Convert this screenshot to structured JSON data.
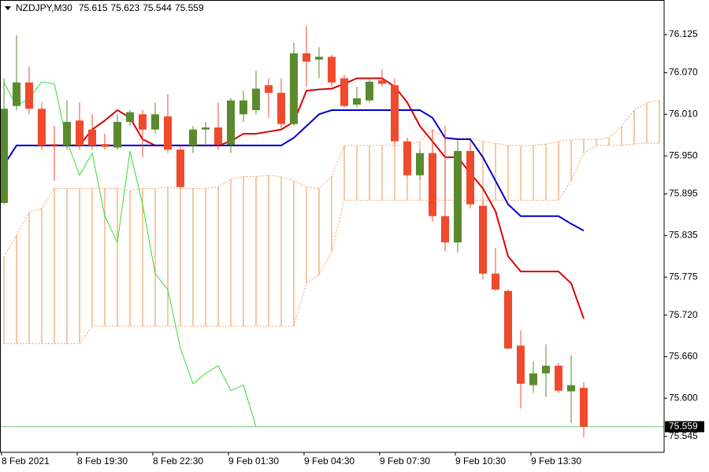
{
  "chart_data": {
    "type": "candlestick",
    "title": "NZDJPY,M30",
    "categories": [
      "8 Feb 2021",
      null,
      null,
      null,
      null,
      null,
      "8 Feb 19:30",
      null,
      null,
      null,
      null,
      null,
      "8 Feb 22:30",
      null,
      null,
      null,
      null,
      null,
      "9 Feb 01:30",
      null,
      null,
      null,
      null,
      null,
      "9 Feb 04:30",
      null,
      null,
      null,
      null,
      null,
      "9 Feb 07:30",
      null,
      null,
      null,
      null,
      null,
      "9 Feb 10:30",
      null,
      null,
      null,
      null,
      null,
      "9 Feb 13:30",
      null,
      null,
      null,
      null,
      null,
      null,
      null,
      null,
      null,
      null
    ],
    "ylim": [
      75.522,
      76.175
    ],
    "yticks": [
      76.125,
      {
        "value": 76.07,
        "label": "76.070"
      },
      {
        "value": 76.01,
        "label": "76.010"
      },
      {
        "value": 75.95,
        "label": "75.950"
      },
      75.895,
      75.835,
      75.775,
      {
        "value": 75.72,
        "label": "75.720"
      },
      {
        "value": 75.66,
        "label": "75.660"
      },
      {
        "value": 75.6,
        "label": "75.600"
      },
      75.545
    ],
    "candles": {
      "up_color": "#5b8a2e",
      "down_color": "#f04a2c",
      "open": [
        75.882,
        76.022,
        76.056,
        76.018,
        75.967,
        75.965,
        76.001,
        75.988,
        75.967,
        75.962,
        75.999,
        76.01,
        75.988,
        76.007,
        75.959,
        75.965,
        75.988,
        75.991,
        75.966,
        76.01,
        76.016,
        76.052,
        76.041,
        75.996,
        76.098,
        76.089,
        76.093,
        76.062,
        76.024,
        76.03,
        76.059,
        76.052,
        75.971,
        75.922,
        75.954,
        75.863,
        75.825,
        75.957,
        75.878,
        75.78,
        75.755,
        75.676,
        75.619,
        75.636,
        75.647,
        75.61,
        75.615,
        null,
        null,
        null,
        null,
        null,
        null
      ],
      "high": [
        76.062,
        76.124,
        76.079,
        76.027,
        75.993,
        76.03,
        76.027,
        76.01,
        75.982,
        76.01,
        76.016,
        76.016,
        76.027,
        76.039,
        75.965,
        75.993,
        75.999,
        76.027,
        76.033,
        76.044,
        76.073,
        76.062,
        76.062,
        76.113,
        76.138,
        76.107,
        76.096,
        76.067,
        76.05,
        76.062,
        76.075,
        76.062,
        75.976,
        75.959,
        75.988,
        75.993,
        75.971,
        75.968,
        75.886,
        75.817,
        75.757,
        75.698,
        75.653,
        75.678,
        75.651,
        75.662,
        75.623,
        null,
        null,
        null,
        null,
        null,
        null
      ],
      "low": [
        75.88,
        76.016,
        76.01,
        75.959,
        75.914,
        75.959,
        75.959,
        75.959,
        75.959,
        75.959,
        75.993,
        75.948,
        75.982,
        75.954,
        75.903,
        75.954,
        75.965,
        75.959,
        75.954,
        75.999,
        76.01,
        76.005,
        75.988,
        75.993,
        76.05,
        76.062,
        76.05,
        76.02,
        76.02,
        76.027,
        76.05,
        75.965,
        75.92,
        75.916,
        75.855,
        75.812,
        75.81,
        75.874,
        75.772,
        75.755,
        75.67,
        75.585,
        75.608,
        75.602,
        75.608,
        75.564,
        75.544,
        null,
        null,
        null,
        null,
        null,
        null
      ],
      "close": [
        76.018,
        76.056,
        76.018,
        75.965,
        75.965,
        75.999,
        75.965,
        75.965,
        75.963,
        75.999,
        76.013,
        75.988,
        76.01,
        75.959,
        75.905,
        75.988,
        75.991,
        75.966,
        76.03,
        76.03,
        76.047,
        76.041,
        75.996,
        76.098,
        76.086,
        76.093,
        76.056,
        76.022,
        76.033,
        76.057,
        76.054,
        75.971,
        75.922,
        75.954,
        75.863,
        75.825,
        75.957,
        75.88,
        75.78,
        75.757,
        75.672,
        75.621,
        75.636,
        75.647,
        75.611,
        75.619,
        75.559,
        null,
        null,
        null,
        null,
        null,
        null
      ]
    },
    "lines": [
      {
        "color": "#dd0000",
        "width": 2,
        "values": [
          null,
          null,
          null,
          75.965,
          75.965,
          75.965,
          75.965,
          75.988,
          76.001,
          76.016,
          76.005,
          75.974,
          75.965,
          75.965,
          75.965,
          75.965,
          75.965,
          75.965,
          75.971,
          75.982,
          75.982,
          75.985,
          75.988,
          75.999,
          76.044,
          76.046,
          76.047,
          76.054,
          76.062,
          76.062,
          76.062,
          76.05,
          76.027,
          75.993,
          75.971,
          75.948,
          75.948,
          75.925,
          75.903,
          75.87,
          75.805,
          75.783,
          75.783,
          75.783,
          75.783,
          75.766,
          75.715,
          null,
          null,
          null,
          null,
          null,
          null
        ]
      },
      {
        "color": "#0000cc",
        "width": 2,
        "values": [
          75.937,
          75.965,
          75.965,
          75.965,
          75.965,
          75.965,
          75.965,
          75.965,
          75.965,
          75.965,
          75.965,
          75.965,
          75.965,
          75.965,
          75.965,
          75.965,
          75.965,
          75.965,
          75.965,
          75.965,
          75.965,
          75.965,
          75.965,
          75.976,
          75.993,
          76.01,
          76.016,
          76.016,
          76.016,
          76.016,
          76.016,
          76.016,
          76.016,
          76.016,
          76.005,
          75.976,
          75.974,
          75.974,
          75.948,
          75.914,
          75.88,
          75.863,
          75.863,
          75.863,
          75.863,
          75.852,
          75.842,
          null,
          null,
          null,
          null,
          null,
          null
        ]
      },
      {
        "color": "#33dd33",
        "width": 1,
        "values": [
          76.056,
          76.022,
          76.033,
          76.057,
          76.054,
          75.971,
          75.922,
          75.954,
          75.863,
          75.825,
          75.957,
          75.88,
          75.78,
          75.757,
          75.672,
          75.621,
          75.636,
          75.647,
          75.611,
          75.619,
          75.559,
          null,
          null,
          null,
          null,
          null,
          null,
          null,
          null,
          null,
          null,
          null,
          null,
          null,
          null,
          null,
          null,
          null,
          null,
          null,
          null,
          null,
          null,
          null,
          null,
          null,
          null,
          null,
          null,
          null,
          null,
          null,
          null
        ]
      }
    ],
    "cloud": {
      "color": "#f4a46a",
      "upper": [
        75.804,
        75.835,
        75.869,
        75.874,
        75.903,
        75.903,
        75.903,
        75.903,
        75.903,
        75.903,
        75.9,
        75.903,
        75.903,
        75.905,
        75.903,
        75.903,
        75.903,
        75.905,
        75.916,
        75.92,
        75.92,
        75.922,
        75.92,
        75.914,
        75.905,
        75.903,
        75.92,
        75.965,
        75.965,
        75.965,
        75.965,
        75.965,
        75.965,
        75.971,
        75.988,
        75.976,
        75.976,
        75.976,
        75.971,
        75.968,
        75.965,
        75.965,
        75.965,
        75.967,
        75.971,
        75.973,
        75.974,
        75.974,
        75.976,
        75.993,
        76.016,
        76.027,
        76.03
      ],
      "lower": [
        75.679,
        75.679,
        75.679,
        75.679,
        75.679,
        75.679,
        75.679,
        75.704,
        75.704,
        75.704,
        75.704,
        75.704,
        75.704,
        75.704,
        75.704,
        75.704,
        75.704,
        75.704,
        75.704,
        75.704,
        75.704,
        75.704,
        75.704,
        75.704,
        75.766,
        75.778,
        75.812,
        75.886,
        75.886,
        75.886,
        75.886,
        75.886,
        75.886,
        75.886,
        75.886,
        75.886,
        75.886,
        75.886,
        75.886,
        75.886,
        75.886,
        75.886,
        75.886,
        75.886,
        75.886,
        75.914,
        75.954,
        75.965,
        75.965,
        75.965,
        75.967,
        75.968,
        75.968
      ]
    },
    "price_line_color": "#7fbf7f"
  }
}
